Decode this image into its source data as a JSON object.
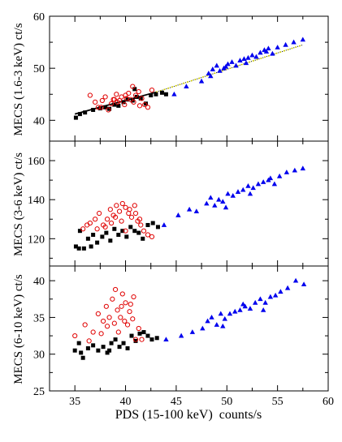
{
  "chart_data": {
    "type": "scatter",
    "x_label": "PDS (15-100 keV)  counts/s",
    "xlim": [
      32.5,
      60
    ],
    "x_ticks": [
      35,
      40,
      45,
      50,
      55,
      60
    ],
    "colors": {
      "black": "#000000",
      "red": "#e00000",
      "blue": "#0000ee",
      "fit_line": "#000000",
      "fit_extension": "#c8c800"
    },
    "panels": [
      {
        "ylabel": "MECS (1.6-3 keV) ct/s",
        "ylim": [
          36,
          60
        ],
        "y_ticks": [
          40,
          50,
          60
        ],
        "tick_labels_shown": [
          40,
          50,
          60
        ],
        "fit": {
          "x": [
            35,
            43
          ],
          "y": [
            41.2,
            45.4
          ]
        },
        "fit_extension": {
          "x": [
            43,
            57.5
          ],
          "y": [
            45.4,
            54.5
          ]
        },
        "series": [
          {
            "marker": "square",
            "color": "black",
            "x": [
              35.1,
              35.5,
              36.0,
              36.8,
              37.5,
              38.0,
              38.4,
              38.9,
              39.3,
              39.8,
              40.2,
              40.7,
              41.1,
              41.5,
              42.0,
              42.5,
              43.0,
              43.6,
              44.0,
              40.9
            ],
            "y": [
              40.5,
              41.2,
              41.5,
              42.0,
              42.3,
              42.5,
              42.2,
              43.0,
              42.8,
              43.5,
              44.0,
              43.8,
              44.5,
              44.2,
              43.2,
              44.8,
              45.0,
              45.3,
              45.0,
              46.0
            ]
          },
          {
            "marker": "circle",
            "color": "red",
            "x": [
              36.5,
              37.0,
              37.3,
              37.7,
              38.0,
              38.3,
              38.6,
              38.9,
              39.1,
              39.4,
              39.6,
              39.9,
              40.1,
              40.3,
              40.5,
              40.8,
              41.0,
              41.3,
              41.6,
              41.9,
              42.2,
              42.6,
              39.2,
              40.0,
              40.7,
              41.4,
              37.6,
              38.8
            ],
            "y": [
              44.8,
              43.5,
              42.5,
              43.8,
              44.5,
              42.0,
              43.2,
              44.0,
              45.0,
              43.8,
              44.5,
              43.0,
              44.2,
              45.2,
              44.0,
              43.5,
              44.8,
              45.5,
              44.2,
              43.0,
              42.5,
              45.8,
              43.5,
              44.8,
              46.5,
              42.8,
              42.5,
              44.0
            ]
          },
          {
            "marker": "triangle",
            "color": "blue",
            "x": [
              44.8,
              46.0,
              47.5,
              48.2,
              48.6,
              49.0,
              49.3,
              49.7,
              50.1,
              50.5,
              50.9,
              51.3,
              51.7,
              52.1,
              52.5,
              52.9,
              53.3,
              53.7,
              54.1,
              54.5,
              55.0,
              55.8,
              56.6,
              57.5,
              49.9,
              51.9,
              53.9,
              48.4
            ],
            "y": [
              45.0,
              46.5,
              47.5,
              49.0,
              49.8,
              50.5,
              49.5,
              50.0,
              50.8,
              51.2,
              50.5,
              51.5,
              51.8,
              52.0,
              52.5,
              52.2,
              53.0,
              53.5,
              53.8,
              52.8,
              54.0,
              54.5,
              55.0,
              55.5,
              50.3,
              51.0,
              53.2,
              48.5
            ]
          }
        ]
      },
      {
        "ylabel": "MECS (3-6 keV) ct/s",
        "ylim": [
          106,
          170
        ],
        "y_ticks": [
          120,
          140,
          160
        ],
        "tick_labels_shown": [
          120,
          140,
          160
        ],
        "series": [
          {
            "marker": "square",
            "color": "black",
            "x": [
              35.1,
              35.5,
              35.9,
              36.3,
              36.8,
              37.2,
              37.7,
              38.1,
              38.5,
              38.9,
              39.3,
              39.7,
              40.1,
              40.5,
              40.9,
              41.3,
              41.7,
              42.2,
              42.7,
              43.2,
              35.4,
              36.6
            ],
            "y": [
              116,
              124,
              115,
              120,
              122,
              118,
              121,
              123,
              119,
              125,
              122,
              124,
              121,
              126,
              124,
              123,
              120,
              127,
              128,
              126,
              115,
              116
            ]
          },
          {
            "marker": "circle",
            "color": "red",
            "x": [
              35.8,
              36.5,
              37.0,
              37.4,
              37.8,
              38.2,
              38.5,
              38.8,
              39.1,
              39.4,
              39.7,
              40.0,
              40.3,
              40.6,
              40.9,
              41.2,
              41.5,
              41.8,
              42.2,
              42.6,
              38.0,
              39.0,
              40.0,
              41.0,
              39.6,
              40.4,
              37.2,
              38.6,
              41.4,
              36.2
            ],
            "y": [
              125,
              128,
              130,
              133,
              127,
              130,
              135,
              132,
              137,
              134,
              138,
              136,
              133,
              131,
              137,
              129,
              127,
              124,
              122,
              121,
              126,
              131,
              124,
              133,
              129,
              135,
              125,
              128,
              130,
              127
            ]
          },
          {
            "marker": "triangle",
            "color": "blue",
            "x": [
              43.8,
              45.2,
              46.3,
              47.0,
              48.0,
              48.4,
              48.8,
              49.2,
              49.6,
              50.1,
              50.6,
              51.1,
              51.6,
              52.1,
              52.6,
              53.1,
              53.6,
              54.1,
              54.7,
              55.2,
              55.9,
              56.7,
              57.5,
              49.9,
              52.3,
              54.3
            ],
            "y": [
              127,
              132,
              135,
              134,
              138,
              141,
              137,
              140,
              139,
              143,
              142,
              144,
              145,
              147,
              146,
              148,
              149,
              150,
              148,
              152,
              154,
              155,
              156,
              136,
              143,
              151
            ]
          }
        ]
      },
      {
        "ylabel": "MECS (6-10 keV) ct/s",
        "ylim": [
          25,
          42
        ],
        "y_ticks": [
          25,
          30,
          35,
          40
        ],
        "tick_labels_shown": [
          25,
          30,
          35,
          40
        ],
        "series": [
          {
            "marker": "square",
            "color": "black",
            "x": [
              35.0,
              35.4,
              35.8,
              36.3,
              36.8,
              37.3,
              37.8,
              38.2,
              38.6,
              39.0,
              39.4,
              39.8,
              40.2,
              40.6,
              41.0,
              41.4,
              41.8,
              42.2,
              42.6,
              43.1,
              35.6,
              38.4
            ],
            "y": [
              30.5,
              31.5,
              29.5,
              30.8,
              31.2,
              30.5,
              31.0,
              30.2,
              31.5,
              32.0,
              31.0,
              31.5,
              30.8,
              32.5,
              31.8,
              32.8,
              33.0,
              32.5,
              32.0,
              32.2,
              30.2,
              30.5
            ]
          },
          {
            "marker": "circle",
            "color": "red",
            "x": [
              35.0,
              36.0,
              36.8,
              37.3,
              37.8,
              38.1,
              38.4,
              38.7,
              39.0,
              39.2,
              39.5,
              39.7,
              40.0,
              40.2,
              40.5,
              40.8,
              41.0,
              41.3,
              39.3,
              39.9,
              40.4,
              38.9,
              37.6,
              41.6,
              36.4,
              38.2,
              40.7,
              39.6
            ],
            "y": [
              32.5,
              34.0,
              33.0,
              35.5,
              34.5,
              36.5,
              35.0,
              37.5,
              38.8,
              36.0,
              35.0,
              38.2,
              37.0,
              34.0,
              36.8,
              37.8,
              32.0,
              33.5,
              33.0,
              34.5,
              35.8,
              34.2,
              32.8,
              32.0,
              31.8,
              33.8,
              34.8,
              36.5
            ]
          },
          {
            "marker": "triangle",
            "color": "blue",
            "x": [
              44.0,
              45.5,
              46.6,
              47.6,
              48.1,
              48.5,
              49.0,
              49.4,
              49.8,
              50.3,
              50.8,
              51.3,
              51.8,
              52.3,
              52.8,
              53.3,
              53.8,
              54.3,
              54.8,
              55.3,
              56.0,
              56.8,
              57.6,
              49.6,
              51.6,
              53.6
            ],
            "y": [
              32.0,
              32.5,
              33.0,
              33.5,
              34.5,
              35.0,
              34.0,
              35.5,
              34.8,
              35.5,
              35.8,
              36.0,
              36.5,
              36.2,
              37.0,
              37.5,
              37.0,
              37.8,
              38.0,
              38.5,
              39.0,
              40.0,
              39.5,
              33.8,
              36.8,
              36.0
            ]
          }
        ]
      }
    ]
  }
}
